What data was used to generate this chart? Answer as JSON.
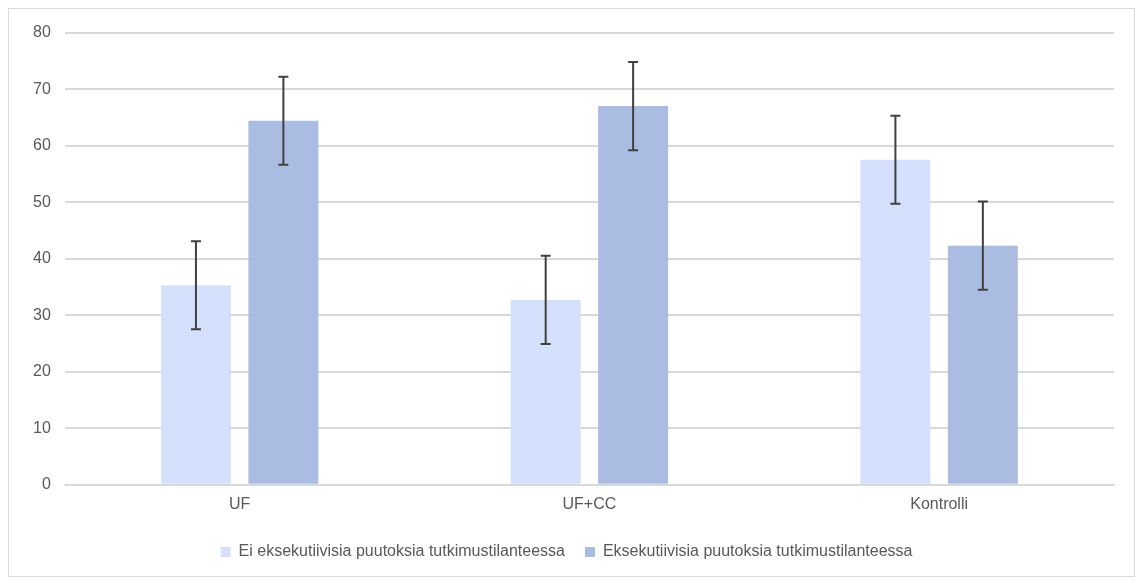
{
  "chart_data": {
    "type": "bar",
    "categories": [
      "UF",
      "UF+CC",
      "Kontrolli"
    ],
    "series": [
      {
        "name": "Ei eksekutiivisia puutoksia tutkimustilanteessa",
        "color": "#d4e0fc",
        "values": [
          35.3,
          32.7,
          57.5
        ],
        "errors": [
          7.8,
          7.8,
          7.8
        ]
      },
      {
        "name": "Eksekutiivisia puutoksia tutkimustilanteessa",
        "color": "#aabce2",
        "values": [
          64.4,
          67.0,
          42.3
        ],
        "errors": [
          7.8,
          7.8,
          7.8
        ]
      }
    ],
    "ylim": [
      0,
      80
    ],
    "yticks": [
      0,
      10,
      20,
      30,
      40,
      50,
      60,
      70,
      80
    ],
    "grid": "y",
    "legend": "bottom"
  }
}
